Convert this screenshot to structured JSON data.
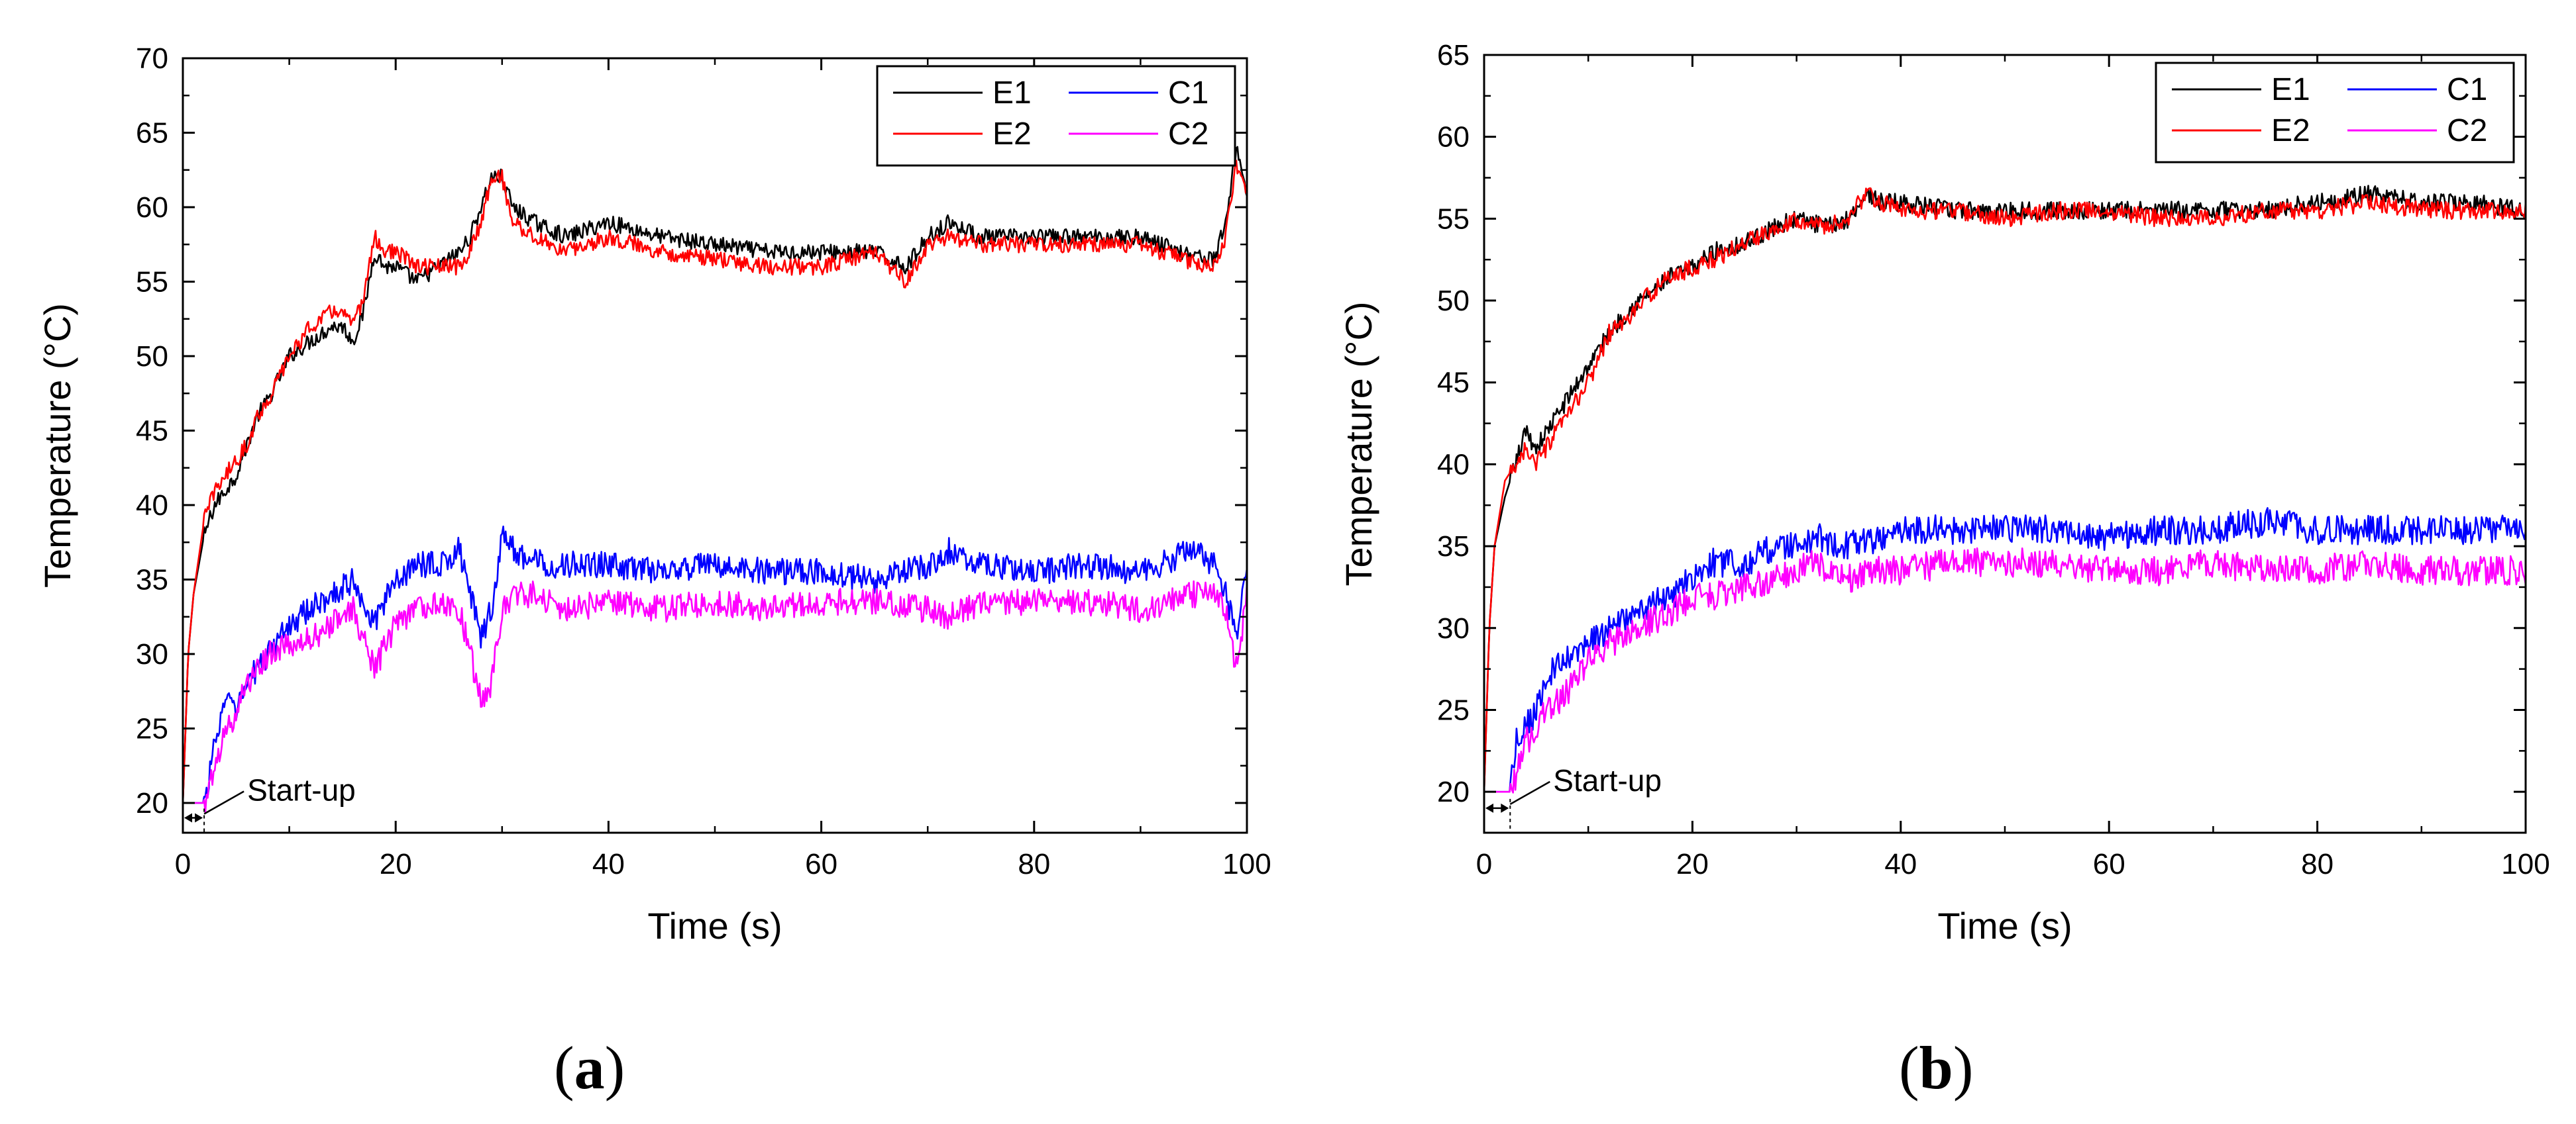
{
  "figure": {
    "panels": [
      {
        "letter": "a",
        "open": "(",
        "close": ")"
      },
      {
        "letter": "b",
        "open": "(",
        "close": ")"
      }
    ]
  },
  "chart_data": [
    {
      "type": "line",
      "panel": "a",
      "title": "",
      "xlabel": "Time (s)",
      "ylabel": "Temperature (°C)",
      "xlim": [
        0,
        100
      ],
      "ylim": [
        18,
        70
      ],
      "xticks": [
        0,
        20,
        40,
        60,
        80,
        100
      ],
      "yticks": [
        20,
        25,
        30,
        35,
        40,
        45,
        50,
        55,
        60,
        65,
        70
      ],
      "grid": false,
      "legend_position": "top-right",
      "annotation": {
        "text": "Start-up",
        "x_range": [
          0,
          2
        ],
        "y": 19
      },
      "series": [
        {
          "name": "E1",
          "color": "#000000",
          "x": [
            0,
            0.5,
            1,
            2,
            3,
            4,
            5,
            6,
            7,
            8,
            10,
            12,
            14,
            15,
            16,
            17,
            18,
            19,
            20,
            22,
            24,
            26,
            27,
            28,
            29,
            30,
            31,
            33,
            36,
            40,
            45,
            50,
            55,
            60,
            65,
            68,
            70,
            72,
            75,
            80,
            85,
            90,
            94,
            97,
            98,
            99,
            100
          ],
          "values": [
            20,
            30,
            34,
            38,
            40,
            41,
            42,
            44,
            46,
            47,
            50,
            51,
            52,
            52,
            51,
            53,
            57,
            56,
            56,
            55,
            56,
            57,
            58,
            60,
            62,
            62,
            60,
            59,
            58,
            59,
            58,
            57.5,
            57,
            57,
            57,
            56,
            58,
            59,
            58,
            58,
            58,
            58,
            57,
            56.5,
            59,
            64,
            61
          ]
        },
        {
          "name": "E2",
          "color": "#ff0000",
          "x": [
            0,
            0.5,
            1,
            2,
            3,
            4,
            5,
            6,
            7,
            8,
            10,
            12,
            14,
            15,
            16,
            17,
            18,
            19,
            20,
            22,
            24,
            26,
            27,
            28,
            29,
            30,
            31,
            33,
            36,
            40,
            45,
            50,
            55,
            60,
            65,
            68,
            70,
            72,
            75,
            80,
            85,
            90,
            94,
            97,
            98,
            99,
            100
          ],
          "values": [
            20,
            30,
            34,
            39,
            41,
            42,
            43,
            44,
            46,
            47,
            50,
            52,
            53,
            53,
            52,
            54,
            58,
            57,
            57,
            56,
            56,
            56,
            57,
            59,
            62,
            62,
            59,
            58,
            57,
            58,
            57,
            56.5,
            56,
            56,
            57,
            55,
            57.5,
            58,
            57.5,
            57.5,
            57.5,
            57.5,
            56.5,
            56,
            58,
            63,
            61
          ]
        },
        {
          "name": "C1",
          "color": "#0000ff",
          "x": [
            0,
            2,
            3,
            4,
            5,
            6,
            8,
            10,
            12,
            14,
            16,
            18,
            20,
            22,
            24,
            26,
            28,
            29,
            30,
            31,
            32,
            35,
            40,
            45,
            50,
            55,
            60,
            65,
            70,
            72,
            75,
            80,
            85,
            90,
            95,
            97,
            98,
            99,
            100
          ],
          "values": [
            20,
            20,
            24,
            27,
            26,
            28,
            30,
            32,
            33,
            34,
            35,
            32,
            35,
            36,
            36,
            37,
            31,
            33,
            38,
            37,
            36.5,
            36,
            36,
            35.5,
            36,
            35.5,
            35.5,
            35,
            36,
            37,
            36,
            35.5,
            36,
            35.5,
            37,
            36,
            34,
            31,
            36
          ]
        },
        {
          "name": "C2",
          "color": "#ff00ff",
          "x": [
            0,
            2,
            3,
            4,
            5,
            6,
            8,
            10,
            12,
            14,
            16,
            18,
            20,
            22,
            24,
            26,
            27,
            28,
            29,
            30,
            31,
            33,
            36,
            40,
            45,
            50,
            55,
            60,
            65,
            70,
            72,
            75,
            80,
            85,
            90,
            95,
            97,
            98,
            99,
            100
          ],
          "values": [
            20,
            20,
            22,
            25,
            26,
            28,
            30,
            30.5,
            31,
            32,
            33,
            29,
            32,
            33,
            33.5,
            33,
            30,
            27,
            28,
            33,
            34,
            34,
            33,
            33.5,
            33,
            33.5,
            33,
            33.5,
            33.5,
            33,
            32.5,
            33.5,
            33.5,
            33.5,
            33,
            34,
            34,
            33,
            29,
            34
          ]
        }
      ]
    },
    {
      "type": "line",
      "panel": "b",
      "title": "",
      "xlabel": "Time (s)",
      "ylabel": "Temperature (°C)",
      "xlim": [
        0,
        100
      ],
      "ylim": [
        17.5,
        65
      ],
      "xticks": [
        0,
        20,
        40,
        60,
        80,
        100
      ],
      "yticks": [
        20,
        25,
        30,
        35,
        40,
        45,
        50,
        55,
        60,
        65
      ],
      "grid": false,
      "legend_position": "top-right",
      "annotation": {
        "text": "Start-up",
        "x_range": [
          0,
          2.5
        ],
        "y": 19
      },
      "series": [
        {
          "name": "E1",
          "color": "#000000",
          "x": [
            0,
            0.5,
            1,
            2,
            3,
            4,
            5,
            6,
            7,
            8,
            10,
            12,
            14,
            16,
            18,
            20,
            22,
            25,
            28,
            30,
            33,
            35,
            36,
            37,
            38,
            40,
            45,
            50,
            55,
            60,
            65,
            70,
            75,
            80,
            85,
            90,
            95,
            100
          ],
          "values": [
            20,
            30,
            35,
            38,
            40,
            42,
            41,
            42,
            43,
            44,
            46,
            48,
            49.5,
            50.5,
            51.5,
            52,
            53,
            53.5,
            54.5,
            55,
            54.5,
            55,
            56,
            56.5,
            56,
            56,
            55.5,
            55.5,
            55.5,
            55.5,
            55.5,
            55.5,
            55.5,
            56,
            56.5,
            56,
            56,
            55.5
          ]
        },
        {
          "name": "E2",
          "color": "#ff0000",
          "x": [
            0,
            0.5,
            1,
            2,
            3,
            4,
            5,
            6,
            7,
            8,
            10,
            12,
            14,
            16,
            18,
            20,
            22,
            25,
            28,
            30,
            33,
            35,
            36,
            37,
            38,
            40,
            45,
            50,
            55,
            60,
            65,
            70,
            75,
            80,
            85,
            90,
            95,
            100
          ],
          "values": [
            20,
            30,
            35,
            39,
            40,
            41,
            40,
            41,
            42,
            43,
            45,
            48,
            49,
            50.5,
            51.5,
            52,
            52.5,
            53.5,
            54.5,
            55,
            54.5,
            55,
            56,
            56.5,
            56,
            55.5,
            55.5,
            55,
            55.5,
            55.5,
            55,
            55,
            55.5,
            55.5,
            56,
            55.5,
            55.5,
            55.5
          ]
        },
        {
          "name": "C1",
          "color": "#0000ff",
          "x": [
            0,
            2.5,
            3,
            4,
            5,
            6,
            8,
            10,
            12,
            15,
            18,
            20,
            22,
            25,
            28,
            30,
            32,
            35,
            38,
            40,
            45,
            50,
            55,
            60,
            65,
            70,
            75,
            80,
            85,
            90,
            95,
            100
          ],
          "values": [
            20,
            20,
            23,
            24,
            25,
            27,
            28,
            29,
            30,
            31,
            32,
            33,
            34,
            34,
            35,
            35,
            35.5,
            35,
            35.5,
            36,
            36,
            36,
            36,
            35.5,
            36,
            36,
            36.5,
            36,
            36,
            36,
            36,
            36
          ]
        },
        {
          "name": "C2",
          "color": "#ff00ff",
          "x": [
            0,
            2.5,
            3,
            4,
            5,
            6,
            8,
            10,
            12,
            15,
            18,
            20,
            22,
            25,
            28,
            30,
            32,
            35,
            38,
            40,
            45,
            50,
            55,
            60,
            65,
            70,
            75,
            80,
            85,
            90,
            95,
            100
          ],
          "values": [
            20,
            20,
            21,
            23,
            24,
            25,
            26,
            28,
            29,
            30,
            31,
            32,
            32,
            32.5,
            33,
            33.5,
            34,
            33,
            33.5,
            33.5,
            34,
            34,
            34,
            33.5,
            33.5,
            34,
            33.5,
            33.5,
            34,
            33.5,
            33.5,
            33.5
          ]
        }
      ]
    }
  ]
}
